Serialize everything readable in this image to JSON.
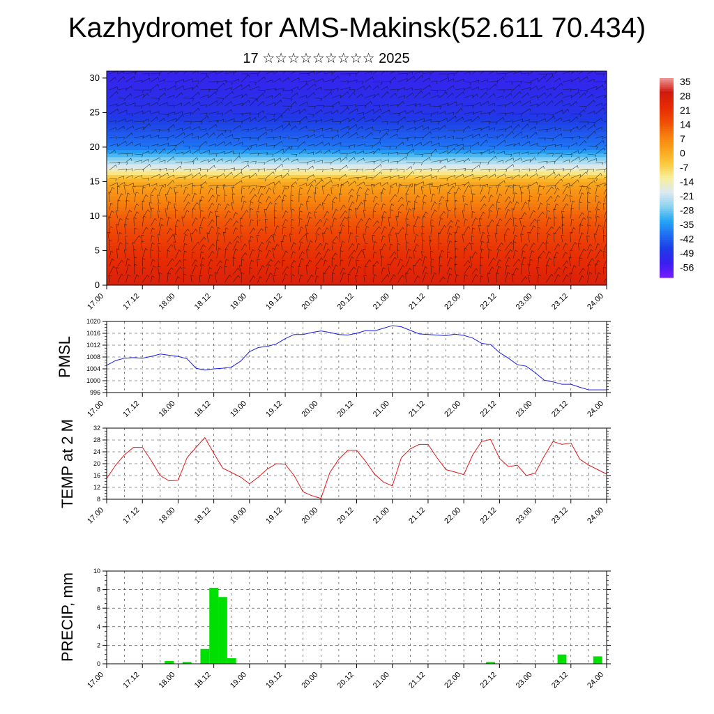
{
  "header": {
    "title": "Kazhydromet for AMS-Makinsk(52.611 70.434)",
    "subtitle": "17 ☆☆☆☆☆☆☆☆☆ 2025"
  },
  "colors": {
    "pmsl_line": "#1a1ae6",
    "temp_line": "#e01818",
    "precip_bar": "#00e000",
    "cross_section_palette": [
      "#7a1cff",
      "#3a1ef0",
      "#1e3ce6",
      "#1f6ef2",
      "#26a8f5",
      "#8fd4ef",
      "#dde9f0",
      "#f8ef9c",
      "#fbc93c",
      "#f9a31b",
      "#f67c0d",
      "#ef4a06",
      "#e62a04",
      "#cf1a0f",
      "#ee9a98"
    ]
  },
  "chart_data": [
    {
      "type": "heatmap",
      "title": "",
      "xlabel": "",
      "ylabel": "",
      "x_ticklabels": [
        "17.00",
        "17.12",
        "18.00",
        "18.12",
        "19.00",
        "19.12",
        "20.00",
        "20.12",
        "21.00",
        "21.12",
        "22.00",
        "22.12",
        "23.00",
        "23.12",
        "24.00"
      ],
      "y_ticks": [
        0,
        5,
        10,
        15,
        20,
        25,
        30
      ],
      "ylim": [
        0,
        31
      ],
      "colorbar_labels": [
        "35",
        "28",
        "21",
        "14",
        "7",
        "0",
        "-7",
        "-14",
        "-21",
        "-28",
        "-35",
        "-42",
        "-49",
        "-56"
      ],
      "colorbar_range": [
        -60,
        38
      ],
      "temperature_profile_by_level": [
        {
          "level": 0,
          "value": 28
        },
        {
          "level": 5,
          "value": 22
        },
        {
          "level": 10,
          "value": 14
        },
        {
          "level": 15,
          "value": 2
        },
        {
          "level": 17,
          "value": -16
        },
        {
          "level": 20,
          "value": -38
        },
        {
          "level": 25,
          "value": -48
        },
        {
          "level": 31,
          "value": -52
        }
      ],
      "overlay": "wind barbs"
    },
    {
      "type": "line",
      "ylabel": "PMSL",
      "x_ticklabels": [
        "17.00",
        "17.12",
        "18.00",
        "18.12",
        "19.00",
        "19.12",
        "20.00",
        "20.12",
        "21.00",
        "21.12",
        "22.00",
        "22.12",
        "23.00",
        "23.12",
        "24.00"
      ],
      "y_ticks": [
        996,
        1000,
        1004,
        1008,
        1012,
        1016,
        1020
      ],
      "ylim": [
        996,
        1020
      ],
      "x": [
        0,
        0.125,
        0.25,
        0.375,
        0.5,
        0.625,
        0.75,
        0.875,
        1,
        1.125,
        1.25,
        1.375,
        1.5,
        1.625,
        1.75,
        1.875,
        2,
        2.125,
        2.25,
        2.375,
        2.5,
        2.625,
        2.75,
        2.875,
        3,
        3.125,
        3.25,
        3.375,
        3.5,
        3.625,
        3.75,
        3.875,
        4,
        4.125,
        4.25,
        4.375,
        4.5,
        4.625,
        4.75,
        4.875,
        5,
        5.125,
        5.25,
        5.375,
        5.5,
        5.625,
        5.75,
        5.875,
        6,
        6.125,
        6.25,
        6.375,
        6.5,
        6.625,
        6.75,
        6.875,
        7
      ],
      "series": [
        {
          "values": [
            1005.2,
            1006.8,
            1007.6,
            1007.8,
            1007.6,
            1008.2,
            1009.0,
            1008.6,
            1008.2,
            1007.4,
            1004.2,
            1003.6,
            1004.0,
            1004.2,
            1004.6,
            1006.6,
            1009.8,
            1011.2,
            1011.6,
            1012.4,
            1014.2,
            1015.6,
            1015.6,
            1016.3,
            1016.8,
            1016.3,
            1015.6,
            1015.4,
            1016.0,
            1016.9,
            1016.8,
            1017.7,
            1018.6,
            1018.2,
            1017.0,
            1015.8,
            1015.6,
            1015.4,
            1015.2,
            1015.7,
            1015.3,
            1014.4,
            1012.6,
            1012.2,
            1009.5,
            1007.6,
            1005.4,
            1004.9,
            1002.7,
            1000.2,
            999.6,
            998.8,
            998.8,
            997.8,
            996.9,
            996.9,
            996.9
          ]
        }
      ]
    },
    {
      "type": "line",
      "ylabel": "TEMP at 2 M",
      "x_ticklabels": [
        "17.00",
        "17.12",
        "18.00",
        "18.12",
        "19.00",
        "19.12",
        "20.00",
        "20.12",
        "21.00",
        "21.12",
        "22.00",
        "22.12",
        "23.00",
        "23.12",
        "24.00"
      ],
      "y_ticks": [
        8,
        12,
        16,
        20,
        24,
        28,
        32
      ],
      "ylim": [
        8,
        32
      ],
      "x": [
        0,
        0.125,
        0.25,
        0.375,
        0.5,
        0.625,
        0.75,
        0.875,
        1,
        1.125,
        1.25,
        1.375,
        1.5,
        1.625,
        1.75,
        1.875,
        2,
        2.125,
        2.25,
        2.375,
        2.5,
        2.625,
        2.75,
        2.875,
        3,
        3.125,
        3.25,
        3.375,
        3.5,
        3.625,
        3.75,
        3.875,
        4,
        4.125,
        4.25,
        4.375,
        4.5,
        4.625,
        4.75,
        4.875,
        5,
        5.125,
        5.25,
        5.375,
        5.5,
        5.625,
        5.75,
        5.875,
        6,
        6.125,
        6.25,
        6.375,
        6.5,
        6.625,
        6.75,
        6.875,
        7
      ],
      "series": [
        {
          "values": [
            15.0,
            19.5,
            23.0,
            25.5,
            25.5,
            21.0,
            16.0,
            14.2,
            14.4,
            22.0,
            25.5,
            28.8,
            23.5,
            18.5,
            17.0,
            15.5,
            13.2,
            15.5,
            18.2,
            20.0,
            19.8,
            16.0,
            10.5,
            9.2,
            8.3,
            17.0,
            21.5,
            24.5,
            24.5,
            20.8,
            16.5,
            13.8,
            12.5,
            22.0,
            25.0,
            26.5,
            26.5,
            22.0,
            18.0,
            17.2,
            16.3,
            23.0,
            27.5,
            28.2,
            21.8,
            19.0,
            19.5,
            16.0,
            16.8,
            22.5,
            27.5,
            26.5,
            27.0,
            21.5,
            19.5,
            18.0,
            16.5
          ]
        }
      ]
    },
    {
      "type": "bar",
      "ylabel": "PRECIP, mm",
      "x_ticklabels": [
        "17.00",
        "17.12",
        "18.00",
        "18.12",
        "19.00",
        "19.12",
        "20.00",
        "20.12",
        "21.00",
        "21.12",
        "22.00",
        "22.12",
        "23.00",
        "23.12",
        "24.00"
      ],
      "y_ticks": [
        0,
        2,
        4,
        6,
        8,
        10
      ],
      "ylim": [
        0,
        10
      ],
      "x": [
        0.875,
        1.125,
        1.375,
        1.5,
        1.625,
        1.75,
        5.375,
        5.75,
        6.375,
        6.875
      ],
      "values": [
        0.3,
        0.2,
        1.6,
        8.2,
        7.2,
        0.6,
        0.2,
        0.05,
        1.0,
        0.8
      ]
    }
  ]
}
